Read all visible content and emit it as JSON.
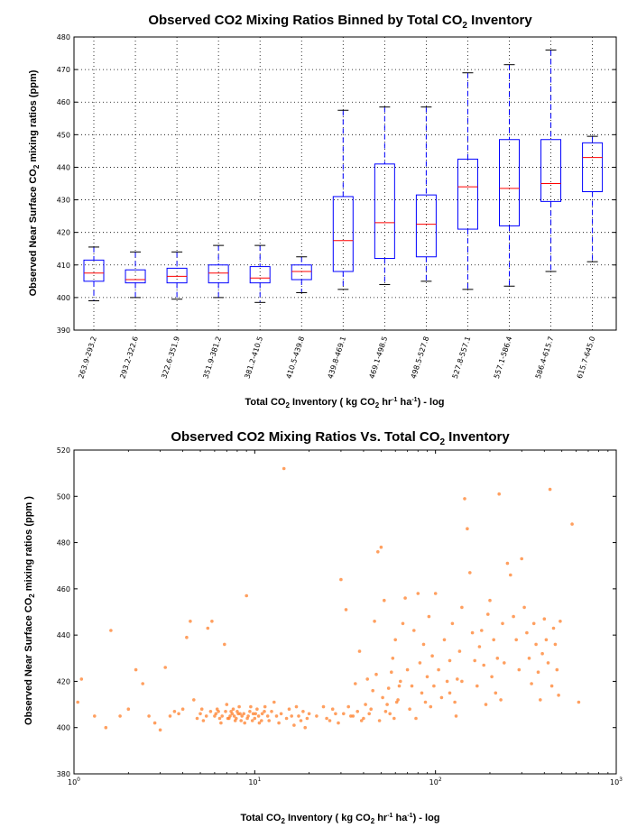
{
  "chart_data": [
    {
      "type": "box",
      "title": "Observed CO2 Mixing Ratios  Binned by Total CO",
      "title_sub": "2",
      "title_end": " Inventory",
      "xlabel_parts": [
        "Total CO",
        "2",
        " Inventory ( kg CO",
        "2",
        " hr",
        "-1",
        " ha",
        "-1",
        ") - log"
      ],
      "ylabel_parts": [
        "Observed Near Surface CO",
        "2",
        " mixing ratios (ppm)"
      ],
      "ylim": [
        390,
        480
      ],
      "yticks": [
        390,
        400,
        410,
        420,
        430,
        440,
        450,
        460,
        470,
        480
      ],
      "grid": true,
      "colors": {
        "box": "#0000ff",
        "median": "#ff0000",
        "whisker": "#0000ff",
        "cap": "#000000",
        "grid": "#000000"
      },
      "categories": [
        "263.9-293.2",
        "293.2-322.6",
        "322.6-351.9",
        "351.9-381.2",
        "381.2-410.5",
        "410.5-439.8",
        "439.8-469.1",
        "469.1-498.5",
        "498.5-527.8",
        "527.8-557.1",
        "557.1-586.4",
        "586.4-615.7",
        "615.7-645.0"
      ],
      "boxes": [
        {
          "min": 399,
          "q1": 405,
          "median": 407.5,
          "q3": 411.5,
          "max": 415.5
        },
        {
          "min": 400,
          "q1": 404.5,
          "median": 405.5,
          "q3": 408.5,
          "max": 414
        },
        {
          "min": 399.5,
          "q1": 404.5,
          "median": 406.5,
          "q3": 409,
          "max": 414
        },
        {
          "min": 400,
          "q1": 404.5,
          "median": 407.5,
          "q3": 410,
          "max": 416
        },
        {
          "min": 398.5,
          "q1": 404.5,
          "median": 406,
          "q3": 409.5,
          "max": 416
        },
        {
          "min": 401.5,
          "q1": 405.5,
          "median": 408,
          "q3": 410,
          "max": 412.5
        },
        {
          "min": 402.5,
          "q1": 408,
          "median": 417.5,
          "q3": 431,
          "max": 457.5
        },
        {
          "min": 404,
          "q1": 412,
          "median": 423,
          "q3": 441,
          "max": 458.5
        },
        {
          "min": 405,
          "q1": 412.5,
          "median": 422.5,
          "q3": 431.5,
          "max": 458.5
        },
        {
          "min": 402.5,
          "q1": 421,
          "median": 434,
          "q3": 442.5,
          "max": 469
        },
        {
          "min": 403.5,
          "q1": 422,
          "median": 433.5,
          "q3": 448.5,
          "max": 471.5
        },
        {
          "min": 408,
          "q1": 429.5,
          "median": 435,
          "q3": 448.5,
          "max": 476
        },
        {
          "min": 411,
          "q1": 432.5,
          "median": 443,
          "q3": 447.5,
          "max": 449.5
        }
      ]
    },
    {
      "type": "scatter",
      "title": "Observed CO2 Mixing Ratios  Vs. Total CO",
      "title_sub": "2",
      "title_end": " Inventory",
      "xlabel_parts": [
        "Total CO",
        "2",
        " Inventory ( kg CO",
        "2",
        " hr",
        "-1",
        " ha",
        "-1",
        ") - log"
      ],
      "ylabel_parts": [
        "Observed Near Surface CO",
        "2",
        " mixing ratios (ppm )"
      ],
      "xscale": "log",
      "xlim": [
        1,
        1000
      ],
      "xticks": [
        {
          "base": "10",
          "exp": "0"
        },
        {
          "base": "10",
          "exp": "1"
        },
        {
          "base": "10",
          "exp": "2"
        },
        {
          "base": "10",
          "exp": "3"
        }
      ],
      "ylim": [
        380,
        520
      ],
      "yticks": [
        380,
        400,
        420,
        440,
        460,
        480,
        500,
        520
      ],
      "grid": false,
      "colors": {
        "point": "#ff7f2a"
      },
      "points": [
        [
          1.1,
          421
        ],
        [
          1.05,
          411
        ],
        [
          1.3,
          405
        ],
        [
          1.5,
          400
        ],
        [
          1.6,
          442
        ],
        [
          1.8,
          405
        ],
        [
          2,
          408
        ],
        [
          2.2,
          425
        ],
        [
          2.4,
          419
        ],
        [
          2.6,
          405
        ],
        [
          2.8,
          402
        ],
        [
          3,
          399
        ],
        [
          3.2,
          426
        ],
        [
          3.4,
          405
        ],
        [
          3.6,
          407
        ],
        [
          3.8,
          406
        ],
        [
          4,
          408
        ],
        [
          4.2,
          439
        ],
        [
          4.4,
          446
        ],
        [
          4.6,
          412
        ],
        [
          4.8,
          404
        ],
        [
          5,
          406
        ],
        [
          5.2,
          403
        ],
        [
          5.5,
          443
        ],
        [
          5.8,
          446
        ],
        [
          6,
          405
        ],
        [
          6.2,
          408
        ],
        [
          6.5,
          402
        ],
        [
          6.8,
          436
        ],
        [
          7,
          410
        ],
        [
          7.2,
          404
        ],
        [
          7.5,
          406
        ],
        [
          7.8,
          403
        ],
        [
          8,
          407
        ],
        [
          8.2,
          409
        ],
        [
          8.5,
          405
        ],
        [
          8.8,
          402
        ],
        [
          9,
          457
        ],
        [
          9.2,
          405
        ],
        [
          9.5,
          409
        ],
        [
          9.8,
          406
        ],
        [
          10,
          404
        ],
        [
          10.3,
          408
        ],
        [
          10.6,
          402
        ],
        [
          11,
          406
        ],
        [
          11.4,
          409
        ],
        [
          11.8,
          405
        ],
        [
          12,
          403
        ],
        [
          12.4,
          407
        ],
        [
          12.8,
          411
        ],
        [
          13.2,
          405
        ],
        [
          13.6,
          402
        ],
        [
          14,
          406
        ],
        [
          14.5,
          512
        ],
        [
          15,
          404
        ],
        [
          15.5,
          408
        ],
        [
          16,
          405
        ],
        [
          16.5,
          401
        ],
        [
          17,
          409
        ],
        [
          17.5,
          405
        ],
        [
          18,
          403
        ],
        [
          18.5,
          407
        ],
        [
          19,
          400
        ],
        [
          19.5,
          404
        ],
        [
          20,
          406
        ],
        [
          6.3,
          407
        ],
        [
          6.6,
          405
        ],
        [
          7.1,
          404
        ],
        [
          7.4,
          407
        ],
        [
          7.7,
          405
        ],
        [
          8.1,
          406
        ],
        [
          8.4,
          403
        ],
        [
          8.7,
          406
        ],
        [
          9.1,
          404
        ],
        [
          9.4,
          407
        ],
        [
          9.7,
          403
        ],
        [
          10.1,
          406
        ],
        [
          10.5,
          405
        ],
        [
          10.9,
          403
        ],
        [
          11.3,
          407
        ],
        [
          5.1,
          408
        ],
        [
          5.4,
          405
        ],
        [
          5.7,
          407
        ],
        [
          6.1,
          406
        ],
        [
          6.4,
          404
        ],
        [
          6.9,
          407
        ],
        [
          7.3,
          405
        ],
        [
          7.6,
          408
        ],
        [
          7.9,
          404
        ],
        [
          8.3,
          406
        ],
        [
          22,
          405
        ],
        [
          24,
          409
        ],
        [
          26,
          403
        ],
        [
          28,
          406
        ],
        [
          30,
          464
        ],
        [
          32,
          451
        ],
        [
          34,
          405
        ],
        [
          36,
          419
        ],
        [
          38,
          433
        ],
        [
          40,
          404
        ],
        [
          42,
          421
        ],
        [
          44,
          408
        ],
        [
          46,
          446
        ],
        [
          48,
          476
        ],
        [
          50,
          478
        ],
        [
          52,
          455
        ],
        [
          54,
          410
        ],
        [
          56,
          406
        ],
        [
          58,
          430
        ],
        [
          60,
          438
        ],
        [
          62,
          412
        ],
        [
          64,
          420
        ],
        [
          66,
          445
        ],
        [
          68,
          456
        ],
        [
          70,
          425
        ],
        [
          72,
          408
        ],
        [
          74,
          418
        ],
        [
          76,
          442
        ],
        [
          78,
          404
        ],
        [
          80,
          458
        ],
        [
          82,
          428
        ],
        [
          84,
          415
        ],
        [
          86,
          436
        ],
        [
          88,
          411
        ],
        [
          90,
          422
        ],
        [
          92,
          448
        ],
        [
          94,
          409
        ],
        [
          96,
          431
        ],
        [
          98,
          418
        ],
        [
          100,
          458
        ],
        [
          104,
          425
        ],
        [
          108,
          413
        ],
        [
          112,
          438
        ],
        [
          116,
          420
        ],
        [
          120,
          429
        ],
        [
          124,
          445
        ],
        [
          128,
          411
        ],
        [
          132,
          421
        ],
        [
          136,
          433
        ],
        [
          140,
          452
        ],
        [
          145,
          499
        ],
        [
          150,
          486
        ],
        [
          155,
          467
        ],
        [
          160,
          441
        ],
        [
          165,
          429
        ],
        [
          170,
          418
        ],
        [
          175,
          435
        ],
        [
          180,
          442
        ],
        [
          185,
          427
        ],
        [
          190,
          410
        ],
        [
          195,
          449
        ],
        [
          200,
          455
        ],
        [
          205,
          422
        ],
        [
          210,
          438
        ],
        [
          215,
          415
        ],
        [
          220,
          430
        ],
        [
          225,
          501
        ],
        [
          230,
          412
        ],
        [
          235,
          445
        ],
        [
          240,
          428
        ],
        [
          250,
          471
        ],
        [
          260,
          466
        ],
        [
          270,
          448
        ],
        [
          280,
          438
        ],
        [
          290,
          425
        ],
        [
          300,
          473
        ],
        [
          310,
          452
        ],
        [
          320,
          441
        ],
        [
          330,
          430
        ],
        [
          340,
          419
        ],
        [
          350,
          445
        ],
        [
          360,
          436
        ],
        [
          370,
          424
        ],
        [
          380,
          412
        ],
        [
          390,
          432
        ],
        [
          400,
          447
        ],
        [
          410,
          438
        ],
        [
          420,
          428
        ],
        [
          430,
          503
        ],
        [
          440,
          418
        ],
        [
          450,
          443
        ],
        [
          460,
          436
        ],
        [
          470,
          425
        ],
        [
          480,
          414
        ],
        [
          490,
          446
        ],
        [
          570,
          488
        ],
        [
          620,
          411
        ],
        [
          120,
          415
        ],
        [
          130,
          405
        ],
        [
          140,
          420
        ],
        [
          25,
          404
        ],
        [
          27,
          408
        ],
        [
          29,
          402
        ],
        [
          31,
          406
        ],
        [
          33,
          409
        ],
        [
          35,
          405
        ],
        [
          37,
          407
        ],
        [
          39,
          403
        ],
        [
          41,
          410
        ],
        [
          43,
          406
        ],
        [
          45,
          416
        ],
        [
          47,
          423
        ],
        [
          49,
          403
        ],
        [
          51,
          413
        ],
        [
          53,
          407
        ],
        [
          55,
          417
        ],
        [
          57,
          424
        ],
        [
          59,
          404
        ],
        [
          61,
          411
        ],
        [
          63,
          418
        ]
      ]
    }
  ]
}
